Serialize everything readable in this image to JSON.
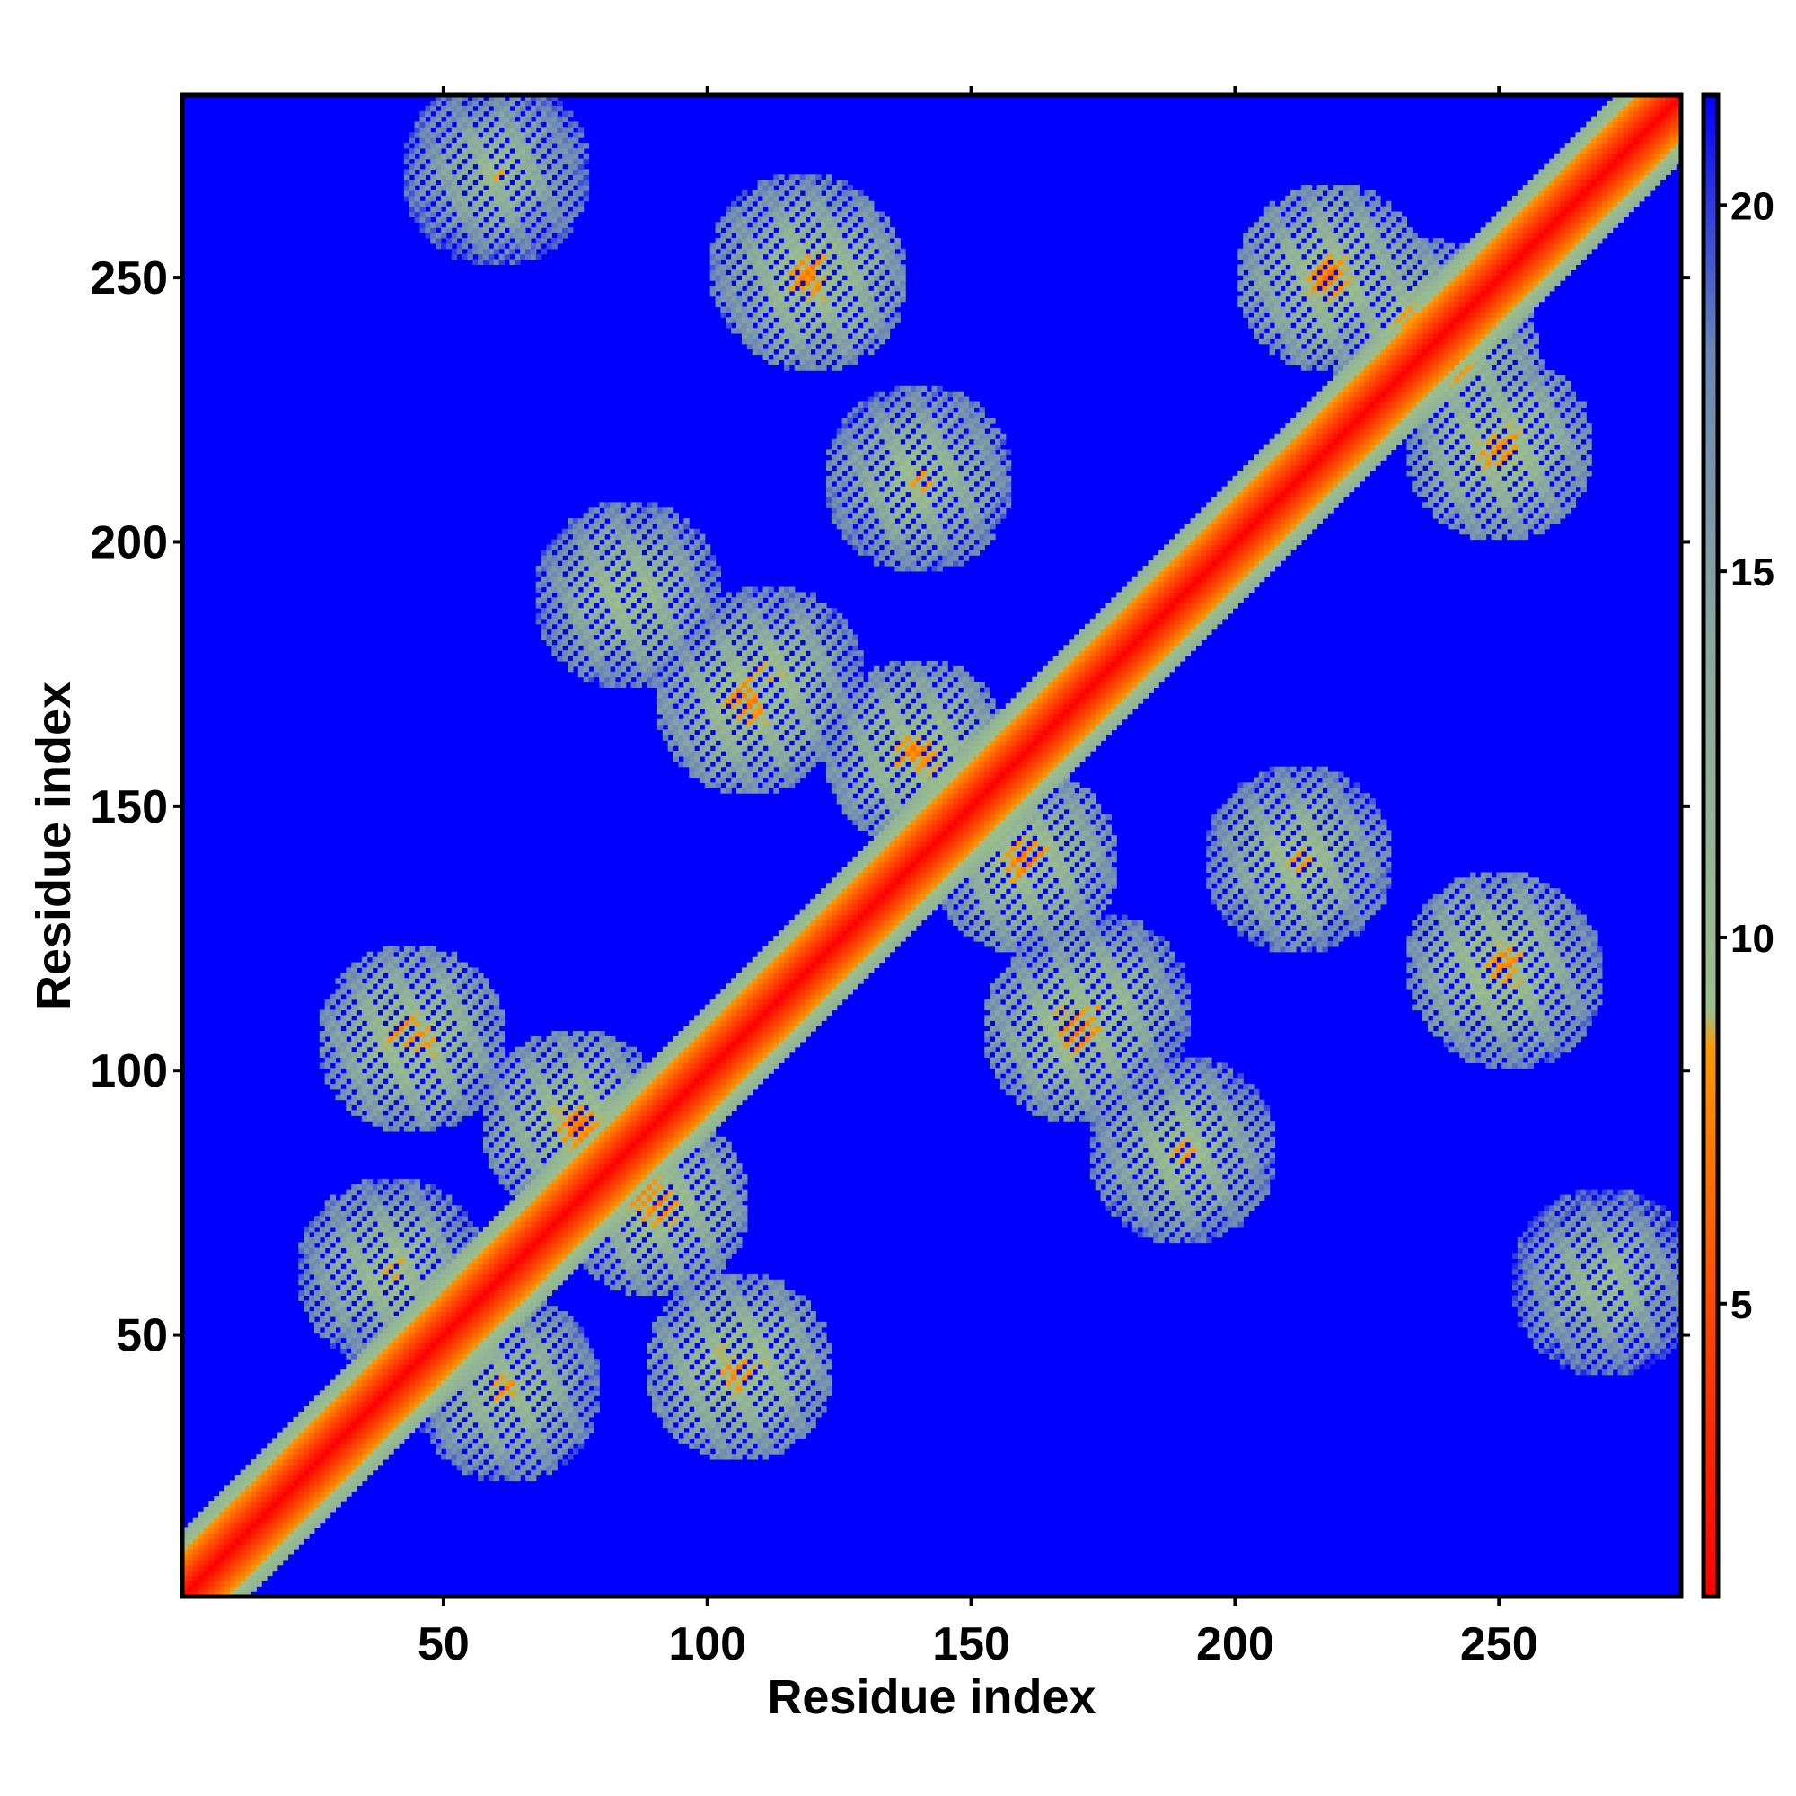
{
  "chart_data": {
    "type": "heatmap",
    "title": "",
    "xlabel": "Residue index",
    "ylabel": "Residue index",
    "n_residues": 284,
    "xlim": [
      1,
      284
    ],
    "ylim": [
      1,
      284
    ],
    "x_ticks": [
      50,
      100,
      150,
      200,
      250
    ],
    "y_ticks": [
      50,
      100,
      150,
      200,
      250
    ],
    "colorbar": {
      "ticks": [
        5,
        10,
        15,
        20
      ],
      "range": [
        1,
        21.5
      ],
      "stops": [
        {
          "value": 1,
          "color": "#ff0000"
        },
        {
          "value": 5,
          "color": "#ff4a00"
        },
        {
          "value": 8.5,
          "color": "#ff9900"
        },
        {
          "value": 9,
          "color": "#9cbf8c"
        },
        {
          "value": 14,
          "color": "#8aa9a0"
        },
        {
          "value": 18,
          "color": "#6b86b8"
        },
        {
          "value": 21.5,
          "color": "#0000ff"
        }
      ]
    },
    "background_color": "#0000ff",
    "description_contacts": [
      {
        "i": 75,
        "j": 90,
        "value": 6
      },
      {
        "i": 40,
        "j": 62,
        "value": 7
      },
      {
        "i": 44,
        "j": 106,
        "value": 6
      },
      {
        "i": 112,
        "j": 174,
        "value": 7
      },
      {
        "i": 120,
        "j": 250,
        "value": 6
      },
      {
        "i": 140,
        "j": 212,
        "value": 7
      },
      {
        "i": 160,
        "j": 140,
        "value": 6
      },
      {
        "i": 170,
        "j": 108,
        "value": 6
      },
      {
        "i": 190,
        "j": 85,
        "value": 7
      },
      {
        "i": 235,
        "j": 240,
        "value": 6
      },
      {
        "i": 250,
        "j": 218,
        "value": 6
      },
      {
        "i": 252,
        "j": 118,
        "value": 7
      },
      {
        "i": 270,
        "j": 60,
        "value": 8
      }
    ]
  }
}
